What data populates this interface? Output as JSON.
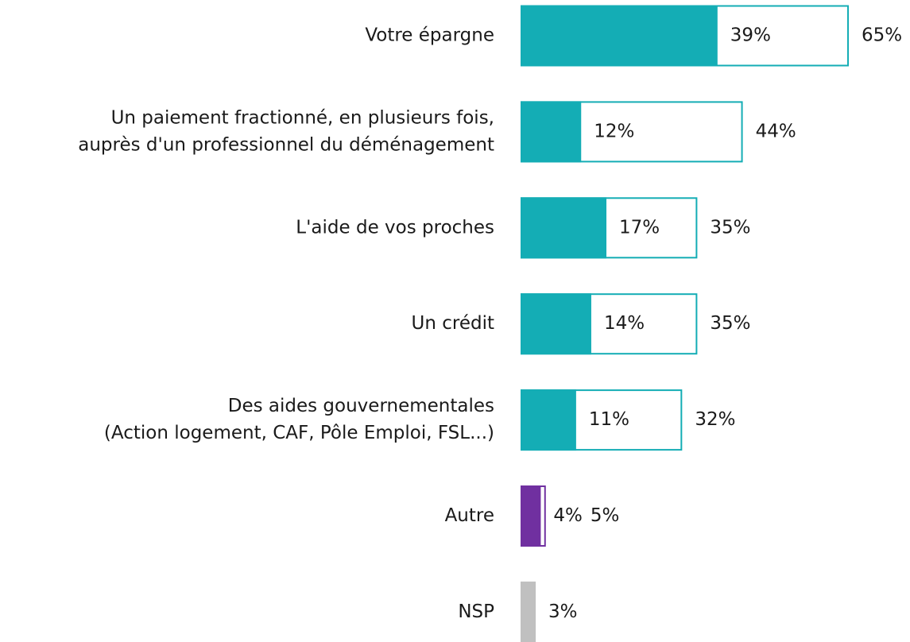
{
  "chart_data": {
    "type": "bar",
    "orientation": "horizontal",
    "categories": [
      [
        "Votre épargne"
      ],
      [
        "Un paiement fractionné, en plusieurs fois,",
        "auprès d'un professionnel du déménagement"
      ],
      [
        "L'aide de vos proches"
      ],
      [
        "Un crédit"
      ],
      [
        "Des aides gouvernementales",
        "(Action logement, CAF, Pôle Emploi, FSL...)"
      ],
      [
        "Autre"
      ],
      [
        "NSP"
      ]
    ],
    "series": [
      {
        "colors": [
          "#14adb5",
          "#14adb5",
          "#14adb5",
          "#14adb5",
          "#14adb5",
          "#7030a0",
          "#c0c0c0"
        ],
        "values": [
          39,
          12,
          17,
          14,
          11,
          4,
          3
        ],
        "value_labels": [
          "39%",
          "12%",
          "17%",
          "14%",
          "11%",
          "4%",
          "3%"
        ]
      },
      {
        "style": "outline",
        "values": [
          65,
          44,
          35,
          35,
          32,
          5,
          null
        ],
        "value_labels": [
          "65%",
          "44%",
          "35%",
          "35%",
          "32%",
          "5%",
          null
        ]
      }
    ]
  }
}
